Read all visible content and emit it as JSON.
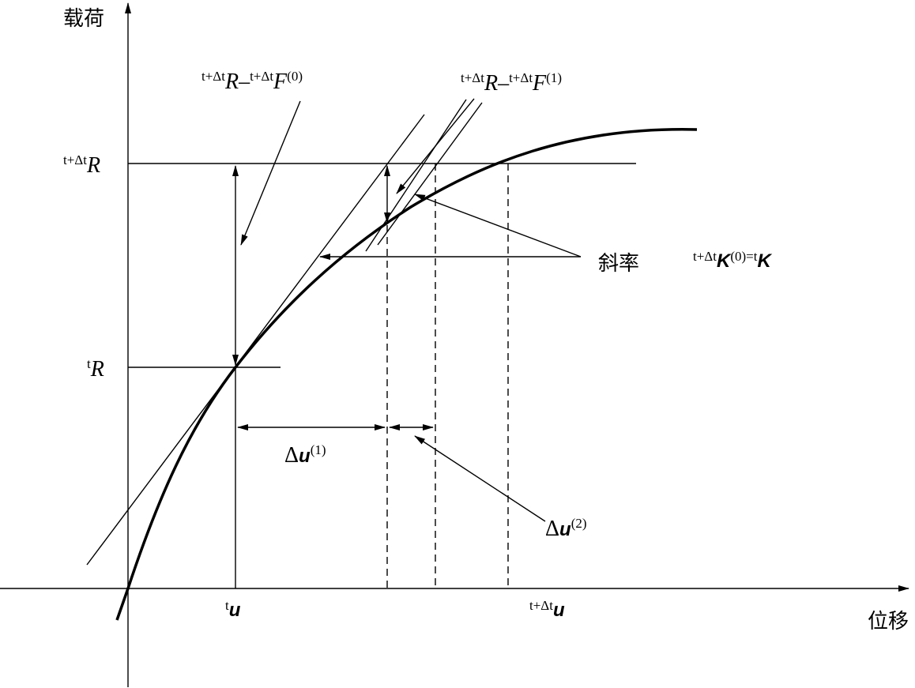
{
  "axes": {
    "y_label": "载荷",
    "x_label": "位移"
  },
  "labels": {
    "R_next": {
      "sup": "t+Δt",
      "base": "R"
    },
    "R_t": {
      "sup": "t",
      "base": "R"
    },
    "u_t": {
      "sup": "t",
      "base": "u"
    },
    "u_next": {
      "sup": "t+Δt",
      "base": "u"
    },
    "residual_0": {
      "sup1": "t+Δt",
      "base1": "R",
      "op": "–",
      "sup2": "t+Δt",
      "base2": "F",
      "sup3": "(0)"
    },
    "residual_1": {
      "sup1": "t+Δt",
      "base1": "R",
      "op": "–",
      "sup2": "t+Δt",
      "base2": "F",
      "sup3": "(1)"
    },
    "slope": "斜率",
    "stiffness": {
      "sup1": "t+Δt",
      "base1": "K",
      "sup2": "(0)",
      "op": "=",
      "sup3": "t",
      "base2": "K"
    },
    "du1": {
      "op": "Δ",
      "base": "u",
      "sup": "(1)"
    },
    "du2": {
      "op": "Δ",
      "base": "u",
      "sup": "(2)"
    }
  }
}
